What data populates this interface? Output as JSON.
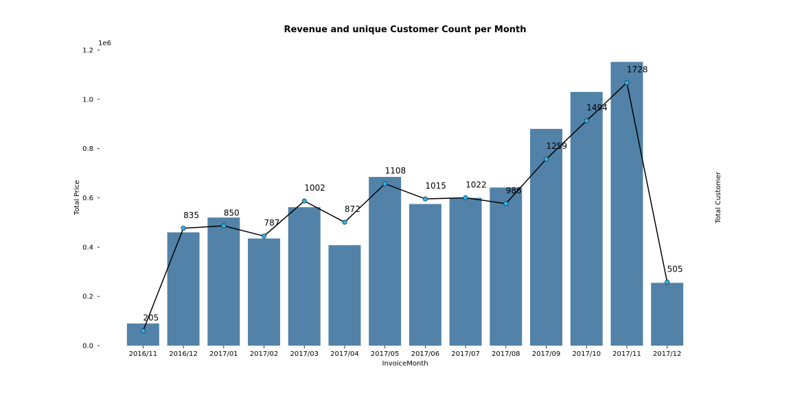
{
  "chart_data": {
    "type": "bar",
    "title": "Revenue and unique Customer Count per Month",
    "xlabel": "InvoiceMonth",
    "ylabel": "Total Price",
    "y2label": "Total Customer",
    "y_offset_label": "1e6",
    "categories": [
      "2016/11",
      "2016/12",
      "2017/01",
      "2017/02",
      "2017/03",
      "2017/04",
      "2017/05",
      "2017/06",
      "2017/07",
      "2017/08",
      "2017/09",
      "2017/10",
      "2017/11",
      "2017/12"
    ],
    "ylim": [
      0,
      1.2
    ],
    "yticks": [
      "0.0",
      "0.2",
      "0.4",
      "0.6",
      "0.8",
      "1.0",
      "1.2"
    ],
    "grid": false,
    "series": [
      {
        "name": "Total Price",
        "kind": "bar",
        "color": "#5282a8",
        "values": [
          0.09,
          0.46,
          0.52,
          0.435,
          0.562,
          0.408,
          0.685,
          0.575,
          0.6,
          0.642,
          0.88,
          1.03,
          1.152,
          0.255
        ]
      },
      {
        "name": "Total Customer",
        "kind": "line",
        "color": "#000000",
        "marker_color": "#29b6e8",
        "values": [
          205,
          835,
          850,
          787,
          1002,
          872,
          1108,
          1015,
          1022,
          986,
          1259,
          1494,
          1728,
          505
        ],
        "y2lim": [
          115,
          1928
        ]
      }
    ]
  }
}
